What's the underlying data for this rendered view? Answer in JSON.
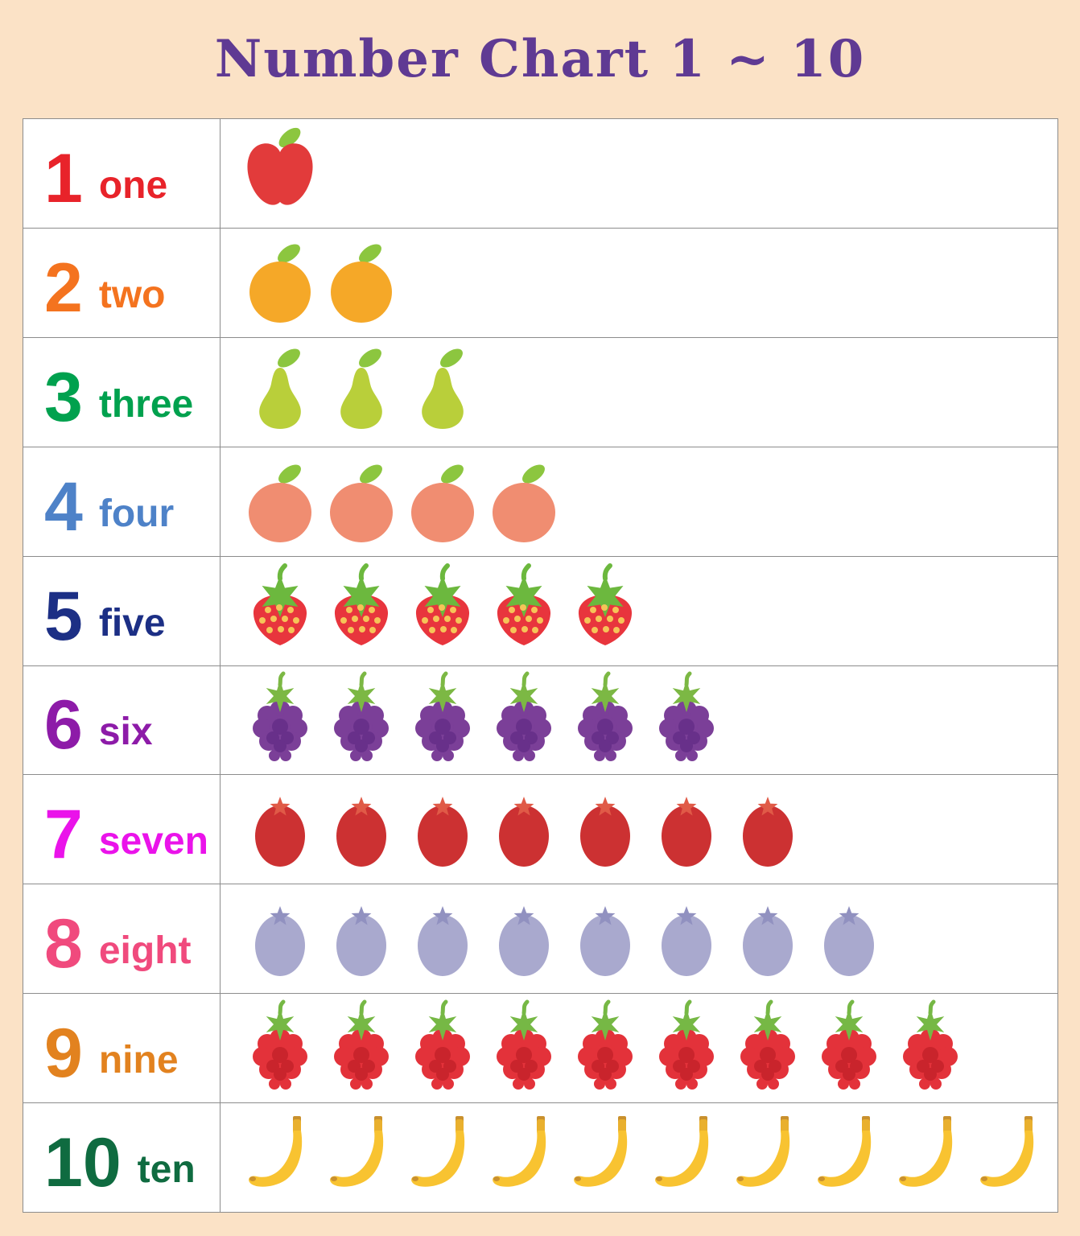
{
  "page": {
    "background_color": "#fbe2c6",
    "title": "Number Chart 1 ~ 10",
    "title_color": "#5f3a93"
  },
  "table": {
    "border_color": "#8c8c8c",
    "cell_background": "#ffffff",
    "rows": [
      {
        "number": "1",
        "word": "one",
        "text_color": "#e8232a",
        "fruit": "apple",
        "count": 1
      },
      {
        "number": "2",
        "word": "two",
        "text_color": "#f4731f",
        "fruit": "orange",
        "count": 2
      },
      {
        "number": "3",
        "word": "three",
        "text_color": "#00a14e",
        "fruit": "pear",
        "count": 3
      },
      {
        "number": "4",
        "word": "four",
        "text_color": "#4e82c8",
        "fruit": "peach",
        "count": 4
      },
      {
        "number": "5",
        "word": "five",
        "text_color": "#1c2f85",
        "fruit": "strawberry",
        "count": 5
      },
      {
        "number": "6",
        "word": "six",
        "text_color": "#8d1ba8",
        "fruit": "blackberry",
        "count": 6
      },
      {
        "number": "7",
        "word": "seven",
        "text_color": "#ea13ea",
        "fruit": "red-berry",
        "count": 7
      },
      {
        "number": "8",
        "word": "eight",
        "text_color": "#f04a7d",
        "fruit": "blueberry",
        "count": 8
      },
      {
        "number": "9",
        "word": "nine",
        "text_color": "#e2821f",
        "fruit": "raspberry",
        "count": 9
      },
      {
        "number": "10",
        "word": "ten",
        "text_color": "#0f6b40",
        "fruit": "banana",
        "count": 10
      }
    ],
    "fruit_colors": {
      "apple": {
        "body": "#e23b3b",
        "leaf": "#8cc63f"
      },
      "orange": {
        "body": "#f5a828",
        "leaf": "#8cc63f"
      },
      "pear": {
        "body": "#b9cf3a",
        "leaf": "#8cc63f"
      },
      "peach": {
        "body": "#f08d71",
        "leaf": "#8cc63f"
      },
      "strawberry": {
        "body": "#e8353d",
        "leaf": "#6cb83e",
        "seeds": "#f6c458"
      },
      "blackberry": {
        "body": "#7b3f98",
        "inner": "#68308a",
        "leaf": "#7cb844"
      },
      "red-berry": {
        "body": "#cc3132",
        "calyx": "#e05a47"
      },
      "blueberry": {
        "body": "#a9a9ce",
        "calyx": "#9191c0"
      },
      "raspberry": {
        "body": "#e3323a",
        "inner": "#c9242c",
        "leaf": "#76b845"
      },
      "banana": {
        "body": "#f8c331",
        "stem": "#e9b02e",
        "tip": "#c9902e"
      }
    }
  }
}
